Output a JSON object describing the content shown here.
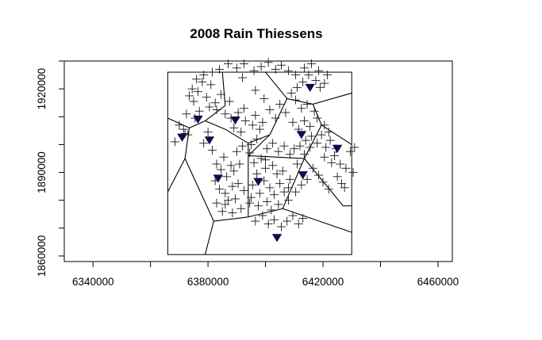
{
  "chart_data": {
    "type": "scatter",
    "title": "2008 Rain Thiessens",
    "xlabel": "",
    "ylabel": "",
    "xlim": [
      6330000,
      6465000
    ],
    "ylim": [
      1858000,
      1930000
    ],
    "x_ticks": [
      6340000,
      6360000,
      6380000,
      6400000,
      6420000,
      6440000,
      6460000
    ],
    "x_tick_labels": [
      "6340000",
      "",
      "6380000",
      "",
      "6420000",
      "",
      "6460000"
    ],
    "y_ticks": [
      1860000,
      1870000,
      1880000,
      1890000,
      1900000,
      1910000,
      1920000,
      1930000
    ],
    "y_tick_labels": [
      "1860000",
      "",
      "",
      "1890000",
      "",
      "",
      "1920000",
      ""
    ],
    "boundary": {
      "xmin": 6366000,
      "xmax": 6430000,
      "ymin": 1860500,
      "ymax": 1926000
    },
    "colors": {
      "stations": "#0d0d4d",
      "lines": "#000000",
      "points": "#1a1a1a"
    },
    "stations": [
      [
        6376500,
        1909000
      ],
      [
        6389500,
        1908700
      ],
      [
        6371000,
        1902500
      ],
      [
        6380500,
        1901500
      ],
      [
        6415500,
        1920400
      ],
      [
        6412500,
        1903500
      ],
      [
        6425000,
        1898500
      ],
      [
        6383500,
        1887800
      ],
      [
        6397500,
        1886600
      ],
      [
        6413000,
        1889000
      ],
      [
        6404000,
        1866500
      ]
    ],
    "thiessen_edges": [
      [
        [
          6366000,
          1909500
        ],
        [
          6373500,
          1906000
        ]
      ],
      [
        [
          6373500,
          1906000
        ],
        [
          6379000,
          1908500
        ]
      ],
      [
        [
          6379000,
          1908500
        ],
        [
          6386000,
          1914000
        ]
      ],
      [
        [
          6386000,
          1914000
        ],
        [
          6385000,
          1926000
        ]
      ],
      [
        [
          6373500,
          1906000
        ],
        [
          6372000,
          1895000
        ]
      ],
      [
        [
          6372000,
          1895000
        ],
        [
          6366000,
          1883000
        ]
      ],
      [
        [
          6379000,
          1908500
        ],
        [
          6386000,
          1905500
        ]
      ],
      [
        [
          6386000,
          1905500
        ],
        [
          6394000,
          1900500
        ]
      ],
      [
        [
          6394000,
          1900500
        ],
        [
          6401500,
          1903500
        ]
      ],
      [
        [
          6401500,
          1903500
        ],
        [
          6407500,
          1916500
        ]
      ],
      [
        [
          6407500,
          1916500
        ],
        [
          6416500,
          1914500
        ]
      ],
      [
        [
          6416500,
          1914500
        ],
        [
          6430000,
          1918500
        ]
      ],
      [
        [
          6407500,
          1916500
        ],
        [
          6400000,
          1926000
        ]
      ],
      [
        [
          6416500,
          1914500
        ],
        [
          6419500,
          1907000
        ]
      ],
      [
        [
          6419500,
          1907000
        ],
        [
          6413500,
          1895000
        ]
      ],
      [
        [
          6413500,
          1895000
        ],
        [
          6394000,
          1896000
        ]
      ],
      [
        [
          6394000,
          1900500
        ],
        [
          6394000,
          1896000
        ]
      ],
      [
        [
          6394000,
          1896000
        ],
        [
          6394000,
          1874000
        ]
      ],
      [
        [
          6394000,
          1874000
        ],
        [
          6382000,
          1872500
        ]
      ],
      [
        [
          6382000,
          1872500
        ],
        [
          6372000,
          1895000
        ]
      ],
      [
        [
          6382000,
          1872500
        ],
        [
          6379000,
          1860500
        ]
      ],
      [
        [
          6394000,
          1874000
        ],
        [
          6406000,
          1877000
        ]
      ],
      [
        [
          6406000,
          1877000
        ],
        [
          6413500,
          1895000
        ]
      ],
      [
        [
          6406000,
          1877000
        ],
        [
          6430000,
          1868500
        ]
      ],
      [
        [
          6413500,
          1895000
        ],
        [
          6427000,
          1878000
        ]
      ],
      [
        [
          6427000,
          1878000
        ],
        [
          6430000,
          1878000
        ]
      ],
      [
        [
          6419500,
          1907000
        ],
        [
          6430000,
          1900000
        ]
      ],
      [
        [
          6401500,
          1903500
        ],
        [
          6394000,
          1896000
        ]
      ]
    ],
    "points": [
      [
        6370000,
        1907000
      ],
      [
        6372000,
        1904000
      ],
      [
        6368500,
        1901000
      ],
      [
        6373000,
        1903500
      ],
      [
        6371500,
        1905500
      ],
      [
        6375000,
        1915500
      ],
      [
        6376500,
        1919000
      ],
      [
        6378000,
        1922500
      ],
      [
        6379500,
        1917000
      ],
      [
        6381000,
        1921500
      ],
      [
        6382500,
        1915000
      ],
      [
        6383000,
        1912500
      ],
      [
        6380500,
        1913500
      ],
      [
        6384500,
        1918000
      ],
      [
        6386000,
        1911000
      ],
      [
        6387500,
        1915500
      ],
      [
        6388000,
        1909500
      ],
      [
        6390500,
        1911500
      ],
      [
        6389000,
        1906000
      ],
      [
        6391500,
        1904500
      ],
      [
        6393000,
        1908500
      ],
      [
        6392500,
        1913000
      ],
      [
        6395500,
        1907000
      ],
      [
        6396500,
        1910500
      ],
      [
        6398000,
        1905500
      ],
      [
        6399000,
        1908000
      ],
      [
        6397000,
        1902000
      ],
      [
        6395000,
        1900000
      ],
      [
        6392000,
        1899500
      ],
      [
        6390000,
        1897500
      ],
      [
        6394500,
        1897000
      ],
      [
        6396000,
        1893500
      ],
      [
        6398500,
        1895000
      ],
      [
        6400000,
        1891500
      ],
      [
        6391000,
        1893000
      ],
      [
        6389000,
        1890500
      ],
      [
        6386500,
        1888500
      ],
      [
        6388500,
        1885000
      ],
      [
        6386000,
        1882500
      ],
      [
        6389500,
        1880500
      ],
      [
        6392500,
        1883500
      ],
      [
        6395500,
        1885500
      ],
      [
        6397000,
        1889500
      ],
      [
        6399500,
        1887000
      ],
      [
        6401500,
        1884500
      ],
      [
        6403000,
        1882000
      ],
      [
        6405000,
        1886000
      ],
      [
        6406500,
        1883000
      ],
      [
        6408000,
        1880000
      ],
      [
        6404500,
        1878500
      ],
      [
        6402000,
        1876500
      ],
      [
        6400500,
        1879500
      ],
      [
        6397500,
        1878000
      ],
      [
        6394500,
        1879000
      ],
      [
        6391500,
        1877000
      ],
      [
        6388500,
        1875500
      ],
      [
        6386000,
        1878500
      ],
      [
        6384000,
        1884000
      ],
      [
        6382500,
        1887000
      ],
      [
        6388000,
        1892500
      ],
      [
        6385500,
        1895500
      ],
      [
        6383000,
        1893000
      ],
      [
        6384500,
        1891000
      ],
      [
        6400500,
        1898500
      ],
      [
        6402500,
        1900500
      ],
      [
        6404500,
        1897500
      ],
      [
        6406500,
        1899500
      ],
      [
        6408500,
        1896500
      ],
      [
        6410000,
        1898500
      ],
      [
        6412000,
        1899500
      ],
      [
        6414000,
        1901500
      ],
      [
        6416000,
        1903000
      ],
      [
        6418000,
        1900500
      ],
      [
        6419500,
        1903500
      ],
      [
        6421000,
        1899000
      ],
      [
        6422500,
        1901500
      ],
      [
        6424000,
        1896000
      ],
      [
        6426000,
        1893000
      ],
      [
        6428000,
        1891500
      ],
      [
        6430500,
        1890000
      ],
      [
        6429500,
        1897500
      ],
      [
        6431000,
        1899000
      ],
      [
        6423000,
        1893500
      ],
      [
        6420500,
        1895500
      ],
      [
        6418500,
        1889000
      ],
      [
        6416500,
        1891500
      ],
      [
        6414500,
        1887500
      ],
      [
        6412500,
        1885500
      ],
      [
        6410500,
        1883000
      ],
      [
        6408500,
        1887500
      ],
      [
        6420000,
        1886500
      ],
      [
        6422000,
        1884000
      ],
      [
        6426500,
        1886000
      ],
      [
        6425000,
        1888500
      ],
      [
        6418000,
        1909500
      ],
      [
        6420500,
        1907000
      ],
      [
        6422000,
        1904500
      ],
      [
        6417000,
        1912000
      ],
      [
        6414500,
        1914500
      ],
      [
        6412500,
        1913000
      ],
      [
        6410500,
        1916000
      ],
      [
        6409000,
        1918500
      ],
      [
        6411000,
        1920500
      ],
      [
        6413000,
        1922500
      ],
      [
        6415000,
        1925000
      ],
      [
        6417500,
        1923000
      ],
      [
        6419000,
        1920500
      ],
      [
        6420500,
        1922000
      ],
      [
        6418500,
        1926500
      ],
      [
        6421500,
        1925000
      ],
      [
        6416000,
        1929000
      ],
      [
        6413500,
        1927500
      ],
      [
        6410500,
        1925000
      ],
      [
        6408000,
        1926500
      ],
      [
        6405500,
        1928500
      ],
      [
        6403500,
        1927000
      ],
      [
        6401000,
        1929500
      ],
      [
        6398500,
        1928000
      ],
      [
        6396000,
        1926500
      ],
      [
        6392500,
        1929000
      ],
      [
        6390000,
        1927500
      ],
      [
        6387000,
        1929000
      ],
      [
        6384000,
        1927000
      ],
      [
        6381500,
        1926000
      ],
      [
        6378500,
        1925000
      ],
      [
        6376000,
        1923500
      ],
      [
        6374500,
        1920000
      ],
      [
        6373500,
        1917500
      ],
      [
        6377000,
        1912000
      ],
      [
        6392000,
        1924000
      ],
      [
        6396500,
        1919500
      ],
      [
        6399500,
        1916500
      ],
      [
        6401500,
        1912500
      ],
      [
        6403500,
        1909500
      ],
      [
        6405000,
        1914500
      ],
      [
        6407000,
        1911500
      ],
      [
        6409500,
        1908000
      ],
      [
        6411500,
        1905500
      ],
      [
        6413500,
        1908500
      ],
      [
        6415500,
        1906500
      ],
      [
        6403000,
        1873000
      ],
      [
        6405500,
        1870500
      ],
      [
        6407500,
        1872500
      ],
      [
        6409500,
        1874500
      ],
      [
        6411500,
        1871500
      ],
      [
        6413000,
        1873500
      ],
      [
        6401000,
        1871500
      ],
      [
        6399000,
        1874500
      ],
      [
        6396500,
        1872500
      ],
      [
        6404000,
        1889500
      ],
      [
        6402500,
        1892500
      ],
      [
        6400000,
        1894500
      ],
      [
        6398000,
        1882500
      ],
      [
        6395000,
        1881000
      ],
      [
        6390500,
        1886000
      ],
      [
        6387000,
        1880000
      ],
      [
        6385000,
        1876000
      ],
      [
        6383000,
        1879000
      ],
      [
        6408000,
        1884500
      ],
      [
        6406000,
        1890500
      ],
      [
        6411000,
        1893000
      ],
      [
        6413500,
        1896500
      ],
      [
        6415500,
        1899000
      ],
      [
        6424500,
        1898500
      ],
      [
        6427500,
        1884500
      ],
      [
        6380000,
        1904500
      ],
      [
        6378500,
        1900500
      ],
      [
        6381500,
        1898000
      ],
      [
        6375500,
        1909500
      ],
      [
        6372500,
        1911000
      ]
    ]
  }
}
